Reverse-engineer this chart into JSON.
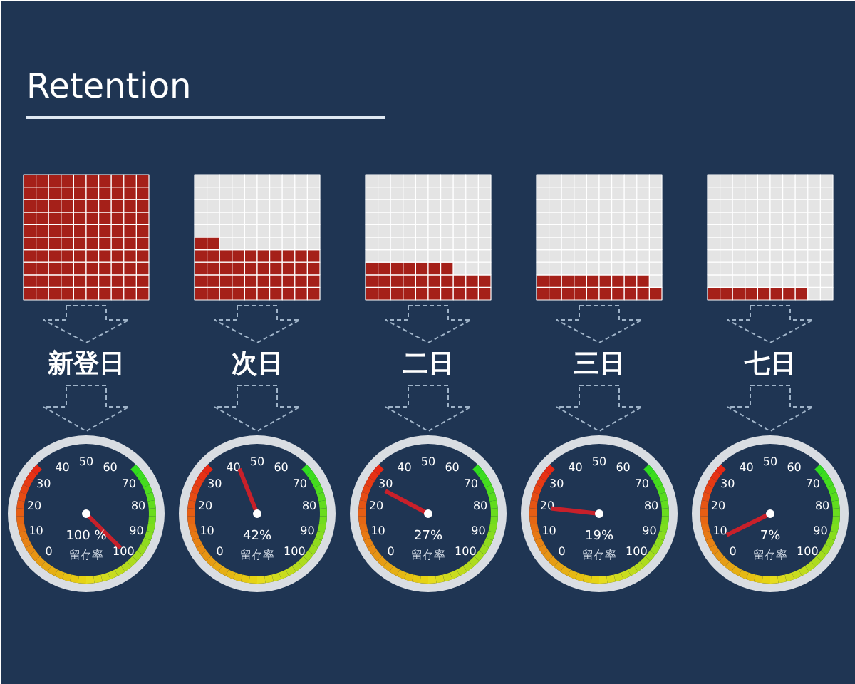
{
  "chart_data": {
    "type": "other",
    "title": "Retention",
    "categories": [
      "新登日",
      "次日",
      "二日",
      "三日",
      "七日"
    ],
    "values": [
      100,
      42,
      27,
      19,
      7
    ],
    "value_labels": [
      "100 %",
      "42%",
      "27%",
      "19%",
      "7%"
    ],
    "ylabel": "留存率",
    "annotations": [
      "0",
      "10",
      "20",
      "30",
      "40",
      "50",
      "60",
      "70",
      "80",
      "90",
      "100"
    ],
    "color": "#a52019"
  }
}
